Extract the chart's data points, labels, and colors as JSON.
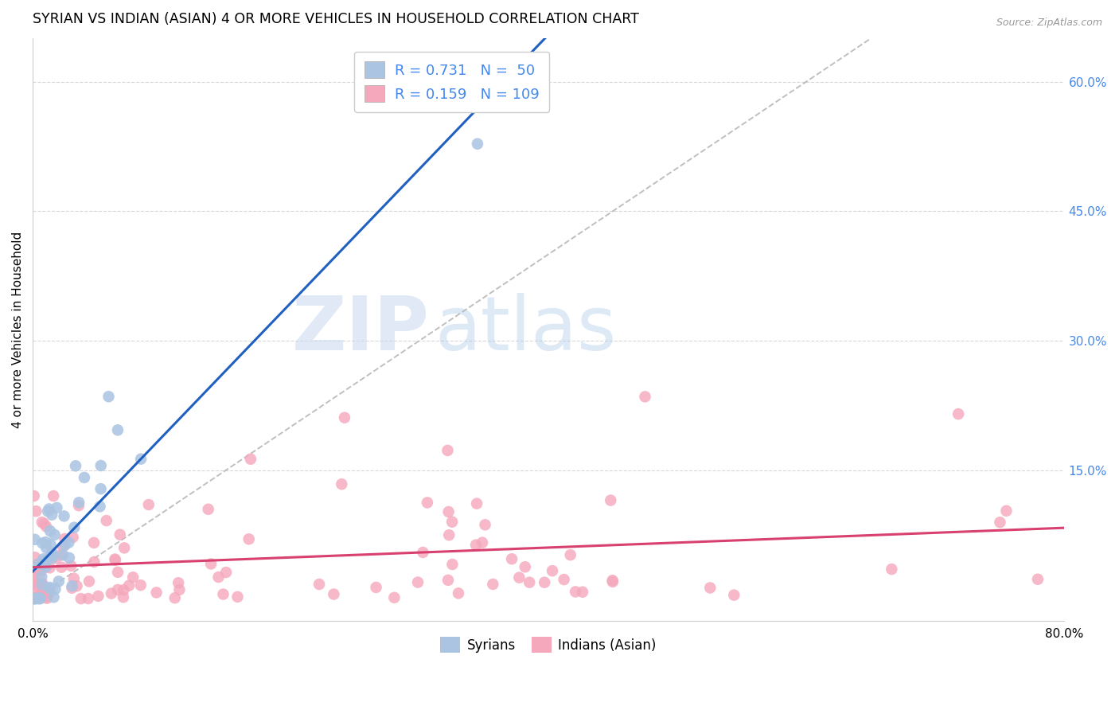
{
  "title": "SYRIAN VS INDIAN (ASIAN) 4 OR MORE VEHICLES IN HOUSEHOLD CORRELATION CHART",
  "source": "Source: ZipAtlas.com",
  "ylabel": "4 or more Vehicles in Household",
  "xlim": [
    0.0,
    0.8
  ],
  "ylim": [
    -0.025,
    0.65
  ],
  "legend_syrian_r": "0.731",
  "legend_syrian_n": "50",
  "legend_indian_r": "0.159",
  "legend_indian_n": "109",
  "syrian_color": "#aac4e2",
  "indian_color": "#f5a8bc",
  "syrian_line_color": "#2060c0",
  "indian_line_color": "#d84070",
  "ref_line_color": "#b8b8b8",
  "watermark_zip": "ZIP",
  "watermark_atlas": "atlas",
  "title_fontsize": 12.5,
  "legend_fontsize": 13,
  "axis_fontsize": 11,
  "tick_color": "#4488ee",
  "grid_color": "#d8d8d8",
  "source_color": "#999999"
}
